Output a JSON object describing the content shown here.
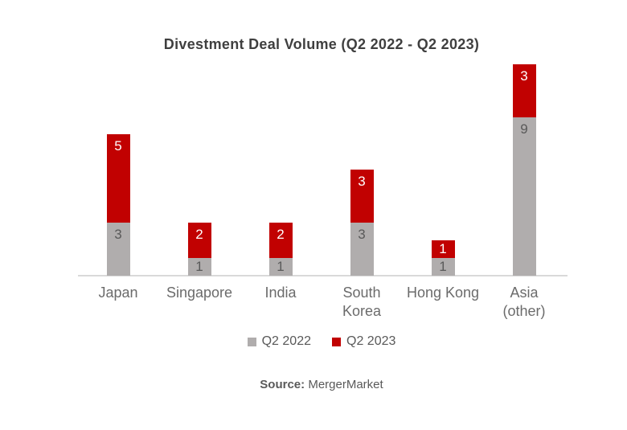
{
  "title": "Divestment Deal Volume (Q2 2022 - Q2 2023)",
  "colors": {
    "q2_2022_gray": "#b0adad",
    "q2_2023_red": "#c10101",
    "axis_line": "#d9d9d9",
    "title_text": "#3f3f3f",
    "category_text": "#6b6b6b",
    "legend_text": "#595959",
    "gray_segment_label": "#595959",
    "red_segment_label": "#ffffff"
  },
  "legend": {
    "items": [
      {
        "label": "Q2 2022",
        "color": "#b0adad"
      },
      {
        "label": "Q2 2023",
        "color": "#c10101"
      }
    ]
  },
  "source": {
    "prefix": "Source:",
    "text": "MergerMarket"
  },
  "chart_data": {
    "type": "bar",
    "stacked": true,
    "title": "Divestment Deal Volume (Q2 2022 - Q2 2023)",
    "categories": [
      "Japan",
      "Singapore",
      "India",
      "South Korea",
      "Hong Kong",
      "Asia (other)"
    ],
    "category_lines": [
      [
        "Japan"
      ],
      [
        "Singapore"
      ],
      [
        "India"
      ],
      [
        "South",
        "Korea"
      ],
      [
        "Hong Kong"
      ],
      [
        "Asia",
        "(other)"
      ]
    ],
    "series": [
      {
        "name": "Q2 2022",
        "color": "#b0adad",
        "label_color": "#595959",
        "values": [
          3,
          1,
          1,
          3,
          1,
          9
        ]
      },
      {
        "name": "Q2 2023",
        "color": "#c10101",
        "label_color": "#ffffff",
        "values": [
          5,
          2,
          2,
          3,
          1,
          3
        ]
      }
    ],
    "value_labels": true,
    "xlabel": "",
    "ylabel": "",
    "axis": "x-only",
    "grid": false,
    "legend_position": "bottom"
  }
}
